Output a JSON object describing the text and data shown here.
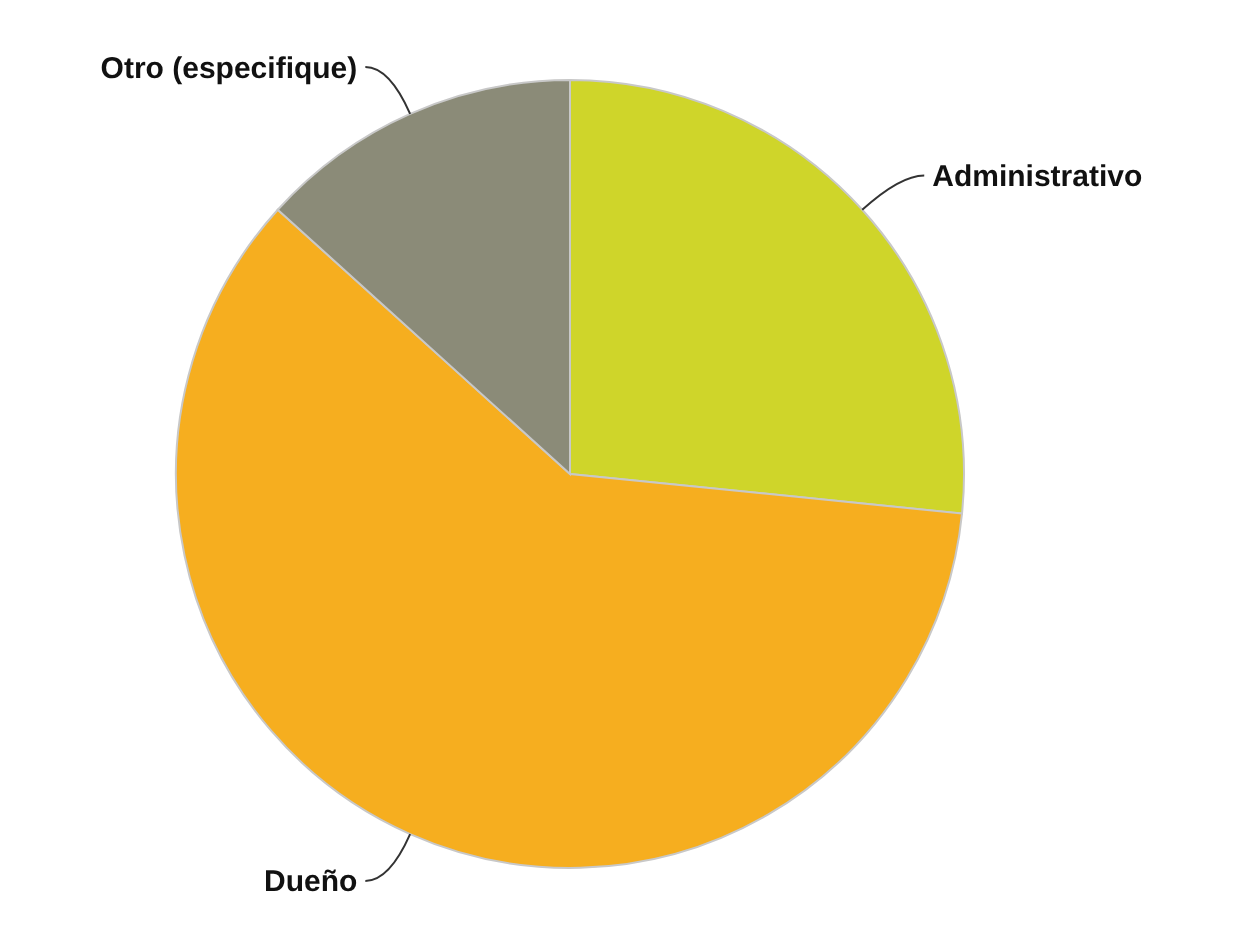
{
  "chart_data": {
    "type": "pie",
    "categories": [
      "Administrativo",
      "Dueño",
      "Otro (especifique)"
    ],
    "values": [
      26.6,
      60.1,
      13.3
    ],
    "colors": [
      "#cfd52a",
      "#f6ae1f",
      "#8b8b78"
    ]
  }
}
